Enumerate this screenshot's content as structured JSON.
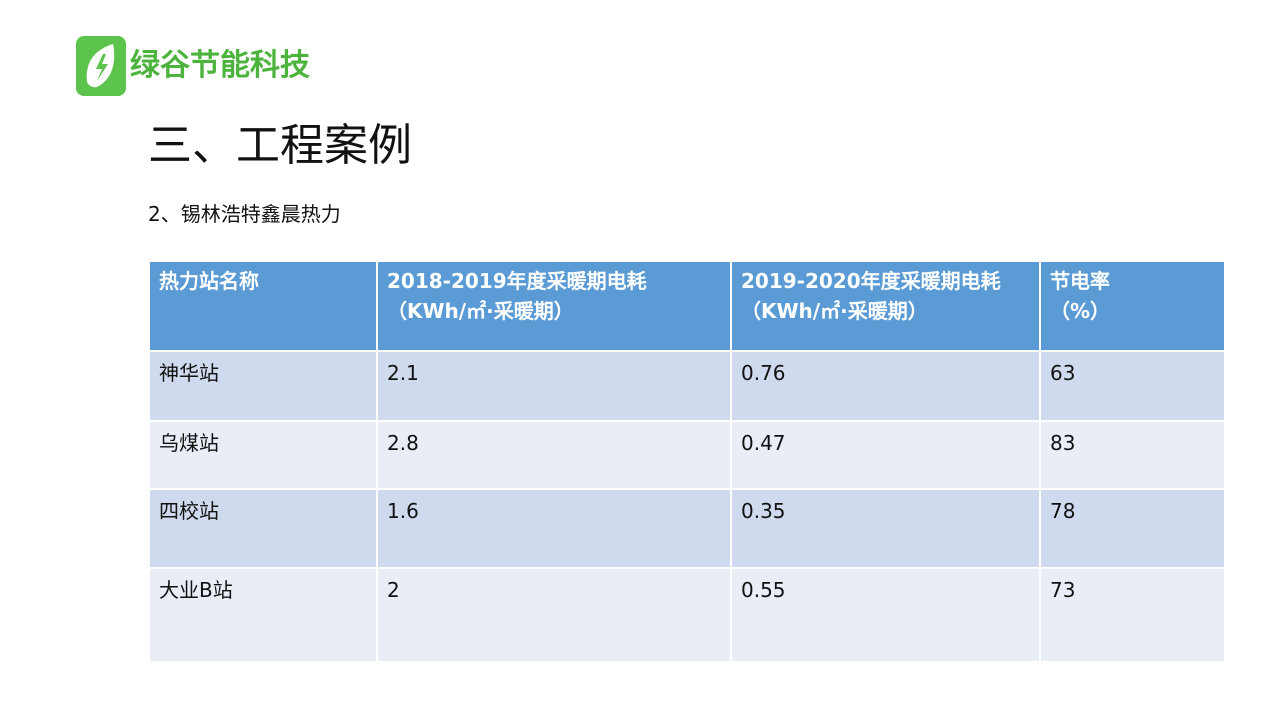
{
  "logo": {
    "text": "绿谷节能科技",
    "brand_color": "#4cb43c",
    "icon": "leaf-lightning-icon"
  },
  "title": "三、工程案例",
  "subtitle": "2、锡林浩特鑫晨热力",
  "table": {
    "header_color": "#5b9bd5",
    "row_colors": [
      "#cfdaee",
      "#e8edf6"
    ],
    "headers": [
      {
        "line1": "热力站名称",
        "line2": ""
      },
      {
        "line1": "2018-2019年度采暖期电耗",
        "line2": "（KWh/㎡·采暖期）"
      },
      {
        "line1": "2019-2020年度采暖期电耗",
        "line2": "（KWh/㎡·采暖期）"
      },
      {
        "line1": "节电率",
        "line2": "（%）"
      }
    ],
    "rows": [
      [
        "神华站",
        "2.1",
        "0.76",
        "63"
      ],
      [
        "乌煤站",
        "2.8",
        "0.47",
        "83"
      ],
      [
        "四校站",
        "1.6",
        "0.35",
        "78"
      ],
      [
        "大业B站",
        "2",
        "0.55",
        "73"
      ]
    ]
  }
}
